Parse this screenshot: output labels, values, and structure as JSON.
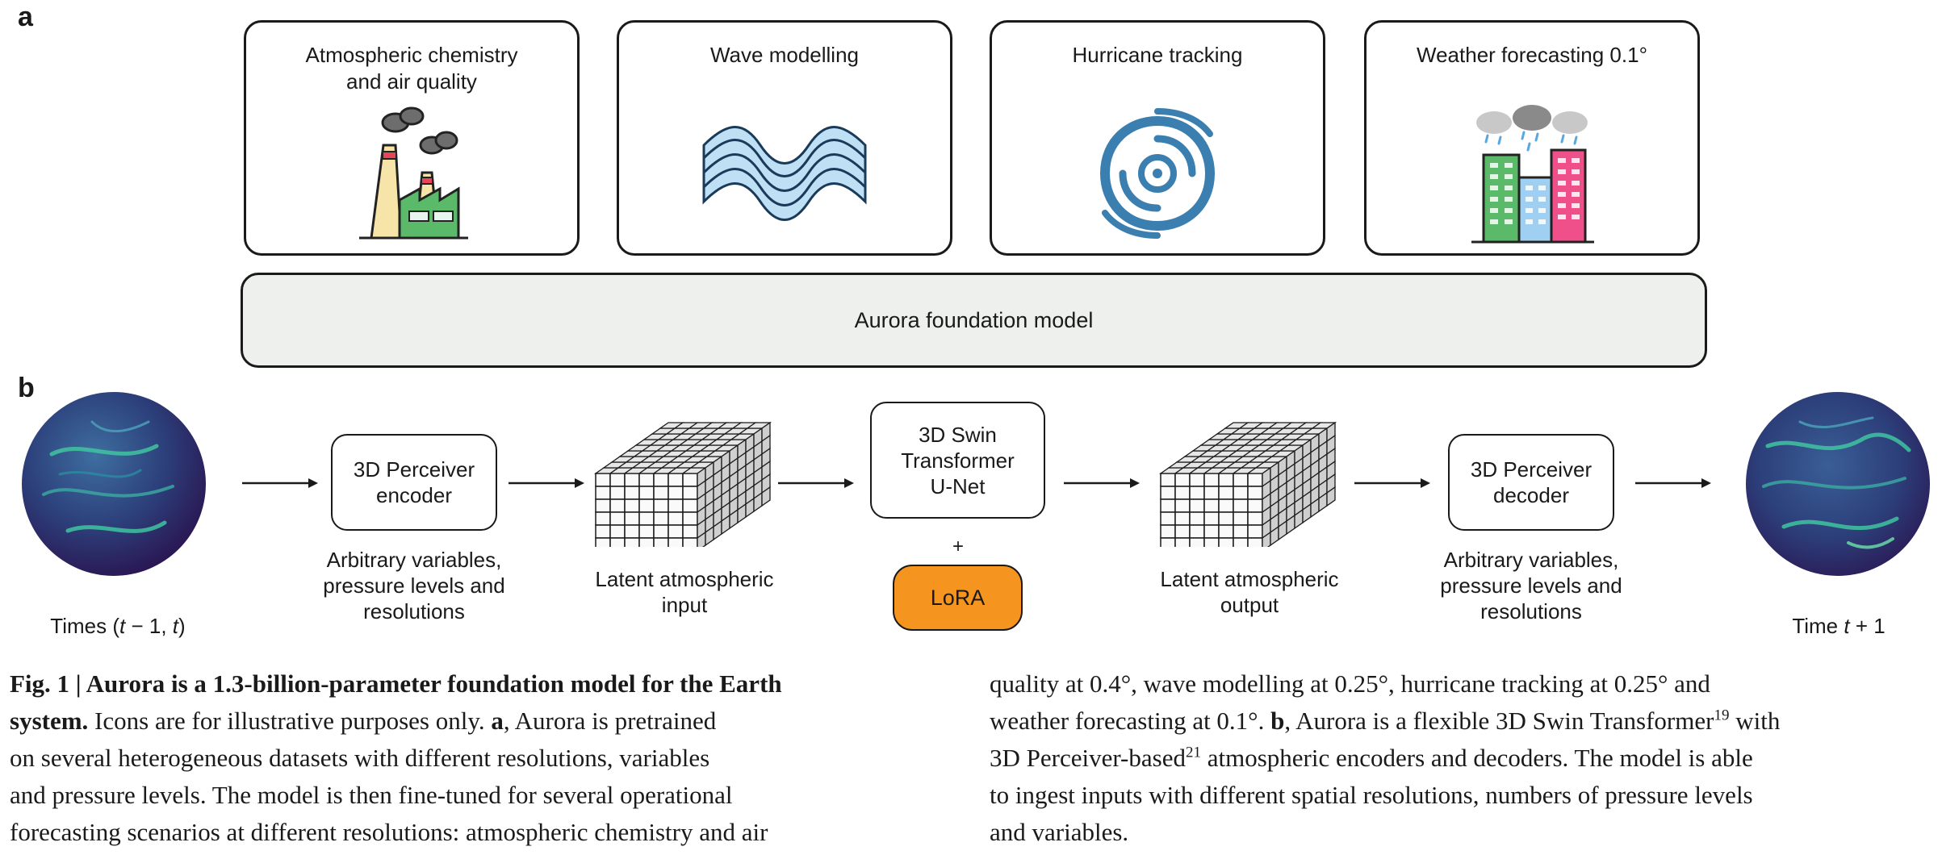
{
  "panels": {
    "a": "a",
    "b": "b"
  },
  "tasks": [
    {
      "title": "Atmospheric chemistry\nand air quality",
      "icon": "factory-icon"
    },
    {
      "title": "Wave modelling",
      "icon": "wave-icon"
    },
    {
      "title": "Hurricane tracking",
      "icon": "hurricane-icon"
    },
    {
      "title": "Weather forecasting 0.1°",
      "icon": "city-rain-icon"
    }
  ],
  "foundation_label": "Aurora foundation model",
  "pipeline": {
    "input_times_pre": "Times (",
    "input_times_var": "t",
    "input_times_mid": " − 1, ",
    "input_times_var2": "t",
    "input_times_post": ")",
    "encoder": "3D Perceiver\nencoder",
    "encoder_caption": "Arbitrary variables,\npressure levels and\nresolutions",
    "latent_input": "Latent atmospheric\ninput",
    "swin": "3D Swin\nTransformer\nU-Net",
    "plus": "+",
    "lora": "LoRA",
    "latent_output": "Latent atmospheric\noutput",
    "decoder": "3D Perceiver\ndecoder",
    "decoder_caption": "Arbitrary variables,\npressure levels and\nresolutions",
    "output_time_pre": "Time ",
    "output_time_var": "t",
    "output_time_post": " + 1"
  },
  "caption": {
    "fig_label": "Fig. 1 | ",
    "title_line1": "Aurora is a 1.3-billion-parameter foundation model for the Earth",
    "title_line2": "system.",
    "left": [
      " Icons are for illustrative purposes only. ",
      "a",
      ", Aurora is pretrained",
      "on several heterogeneous datasets with different resolutions, variables",
      "and pressure levels. The model is then fine-tuned for several operational",
      "forecasting scenarios at different resolutions: atmospheric chemistry and air"
    ],
    "right": [
      "quality at 0.4°, wave modelling at 0.25°, hurricane tracking at 0.25° and",
      "weather forecasting at 0.1°. ",
      "b",
      ", Aurora is a flexible 3D Swin Transformer",
      "19",
      " with",
      "3D Perceiver-based",
      "21",
      " atmospheric encoders and decoders. The model is able",
      "to ingest inputs with different spatial resolutions, numbers of pressure levels",
      "and variables."
    ]
  },
  "colors": {
    "lora": "#f5941e",
    "foundation_bg": "#eef0ee",
    "globe_dark": "#2a1450",
    "globe_mid": "#3e6ea0",
    "globe_light": "#40c4a0"
  }
}
